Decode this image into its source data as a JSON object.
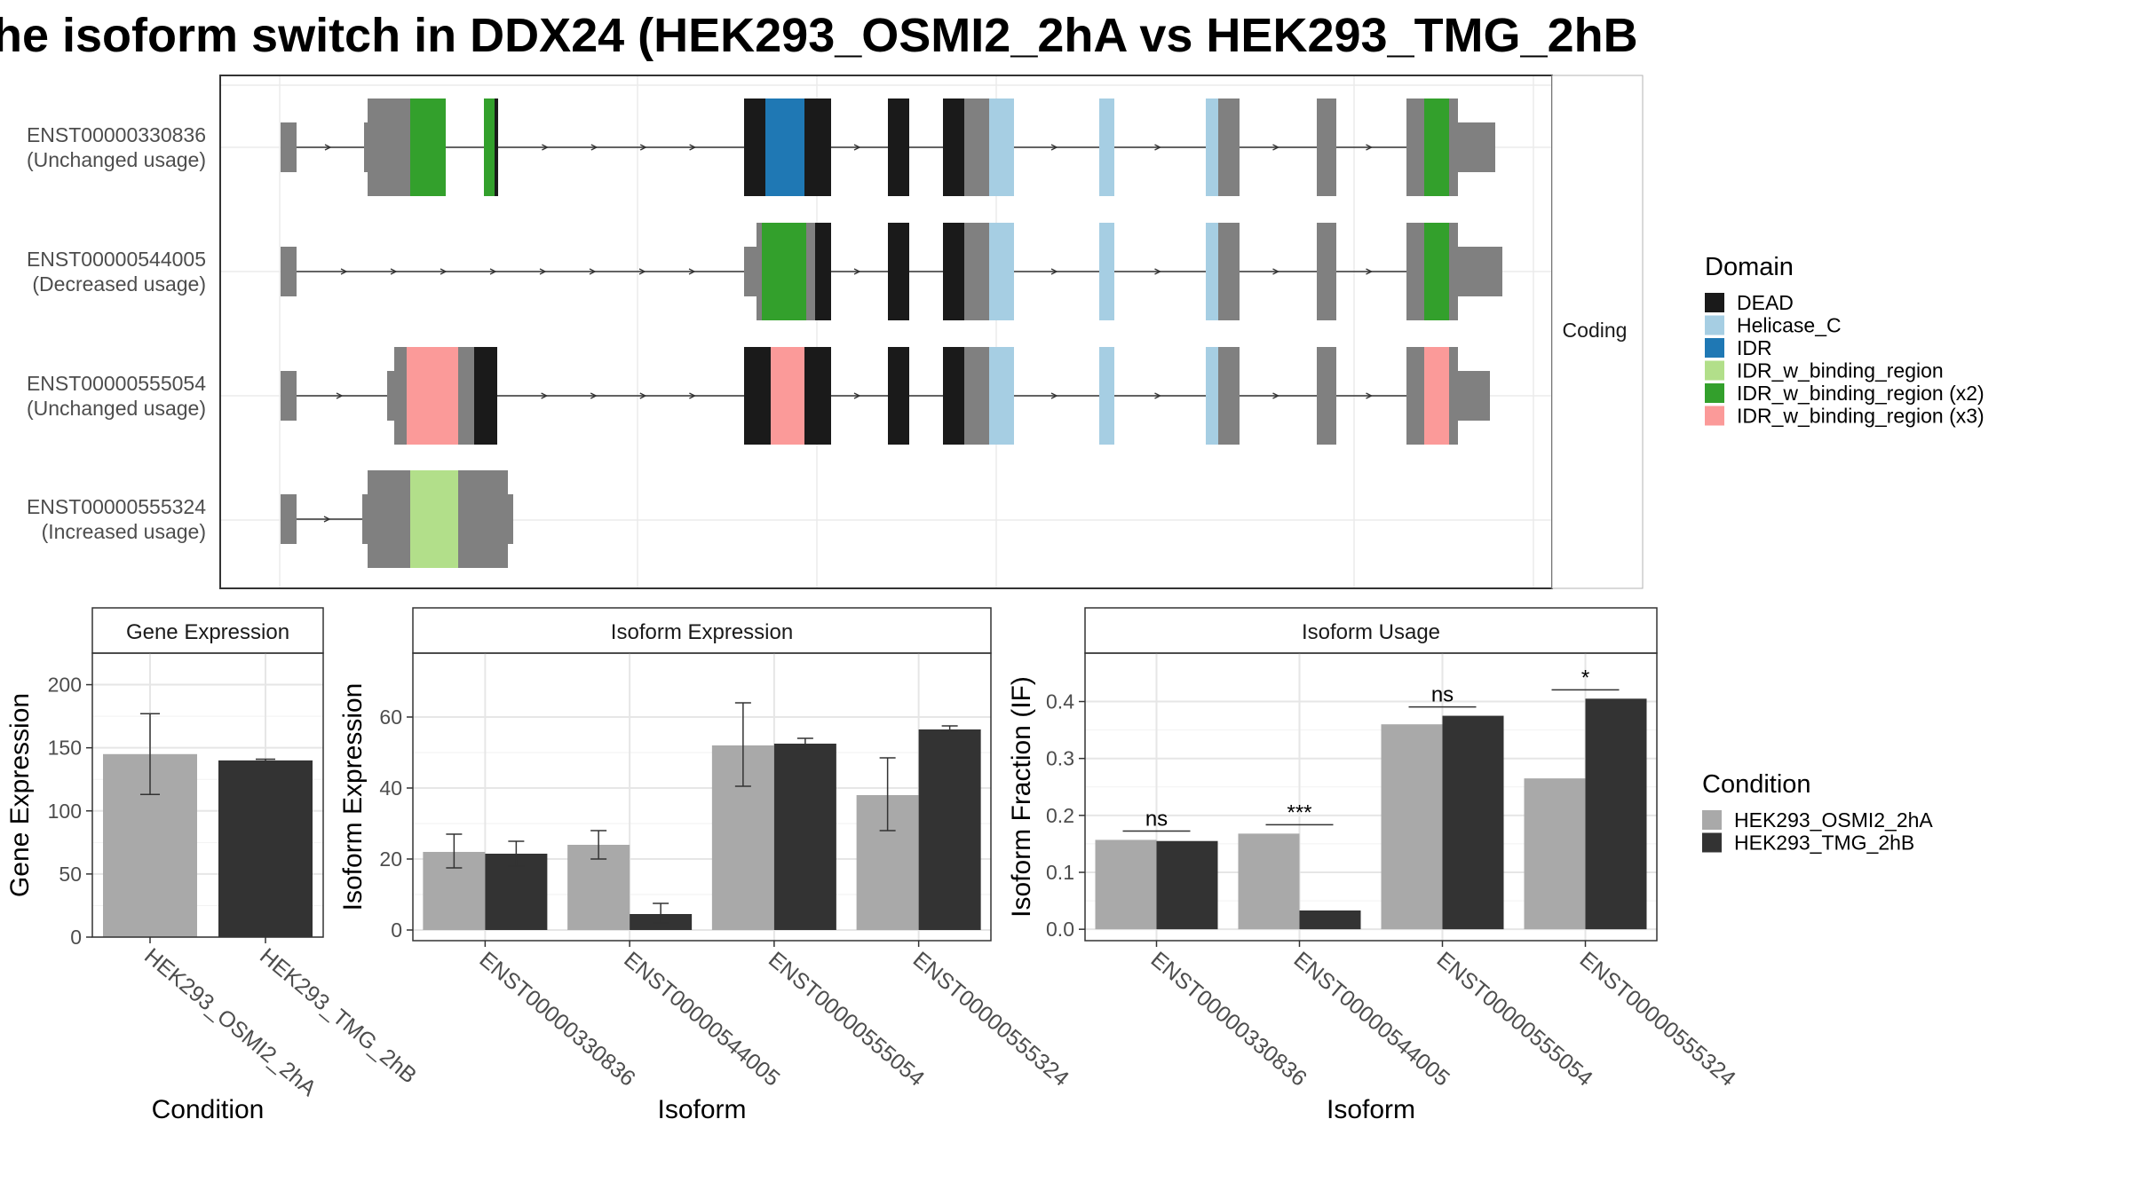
{
  "title": "he isoform switch in DDX24 (HEK293_OSMI2_2hA vs HEK293_TMG_2hB",
  "structure": {
    "facet_label": "Coding",
    "isoforms": [
      {
        "id": "ENST00000330836",
        "usage": "(Unchanged usage)"
      },
      {
        "id": "ENST00000544005",
        "usage": "(Decreased usage)"
      },
      {
        "id": "ENST00000555054",
        "usage": "(Unchanged usage)"
      },
      {
        "id": "ENST00000555324",
        "usage": "(Increased usage)"
      }
    ]
  },
  "domain_legend": {
    "title": "Domain",
    "items": [
      {
        "label": "DEAD",
        "color": "#1a1a1a"
      },
      {
        "label": "Helicase_C",
        "color": "#a6cee3"
      },
      {
        "label": "IDR",
        "color": "#1f78b4"
      },
      {
        "label": "IDR_w_binding_region",
        "color": "#b2df8a"
      },
      {
        "label": "IDR_w_binding_region (x2)",
        "color": "#33a02c"
      },
      {
        "label": "IDR_w_binding_region (x3)",
        "color": "#fb9a99"
      }
    ]
  },
  "condition_legend": {
    "title": "Condition",
    "items": [
      {
        "label": "HEK293_OSMI2_2hA",
        "color": "#a9a9a9"
      },
      {
        "label": "HEK293_TMG_2hB",
        "color": "#333333"
      }
    ]
  },
  "chart_data": [
    {
      "type": "bar",
      "title": "Gene Expression",
      "xlabel": "Condition",
      "ylabel": "Gene Expression",
      "categories": [
        "HEK293_OSMI2_2hA",
        "HEK293_TMG_2hB"
      ],
      "values": [
        145,
        140
      ],
      "errors": [
        [
          113,
          177
        ],
        [
          139,
          141
        ]
      ],
      "colors": [
        "#a9a9a9",
        "#333333"
      ],
      "ylim": [
        0,
        225
      ],
      "yticks": [
        0,
        50,
        100,
        150,
        200
      ]
    },
    {
      "type": "bar",
      "title": "Isoform Expression",
      "xlabel": "Isoform",
      "ylabel": "Isoform Expression",
      "categories": [
        "ENST00000330836",
        "ENST00000544005",
        "ENST00000555054",
        "ENST00000555324"
      ],
      "series": [
        {
          "name": "HEK293_OSMI2_2hA",
          "values": [
            22,
            24,
            52,
            38
          ],
          "errors": [
            [
              17.5,
              27
            ],
            [
              20,
              28
            ],
            [
              40.5,
              64
            ],
            [
              28,
              48.5
            ]
          ]
        },
        {
          "name": "HEK293_TMG_2hB",
          "values": [
            21.5,
            4.5,
            52.5,
            56.5
          ],
          "errors": [
            [
              18,
              25
            ],
            [
              2,
              7.5
            ],
            [
              51,
              54
            ],
            [
              56,
              57.5
            ]
          ]
        }
      ],
      "ylim": [
        -3,
        78
      ],
      "yticks": [
        0,
        20,
        40,
        60
      ],
      "grid": true
    },
    {
      "type": "bar",
      "title": "Isoform Usage",
      "xlabel": "Isoform",
      "ylabel": "Isoform Fraction (IF)",
      "categories": [
        "ENST00000330836",
        "ENST00000544005",
        "ENST00000555054",
        "ENST00000555324"
      ],
      "series": [
        {
          "name": "HEK293_OSMI2_2hA",
          "values": [
            0.157,
            0.168,
            0.36,
            0.265
          ]
        },
        {
          "name": "HEK293_TMG_2hB",
          "values": [
            0.155,
            0.033,
            0.375,
            0.405
          ]
        }
      ],
      "significance": [
        "ns",
        "***",
        "ns",
        "*"
      ],
      "ylim": [
        -0.02,
        0.485
      ],
      "yticks": [
        0.0,
        0.1,
        0.2,
        0.3,
        0.4
      ],
      "grid": true
    }
  ]
}
